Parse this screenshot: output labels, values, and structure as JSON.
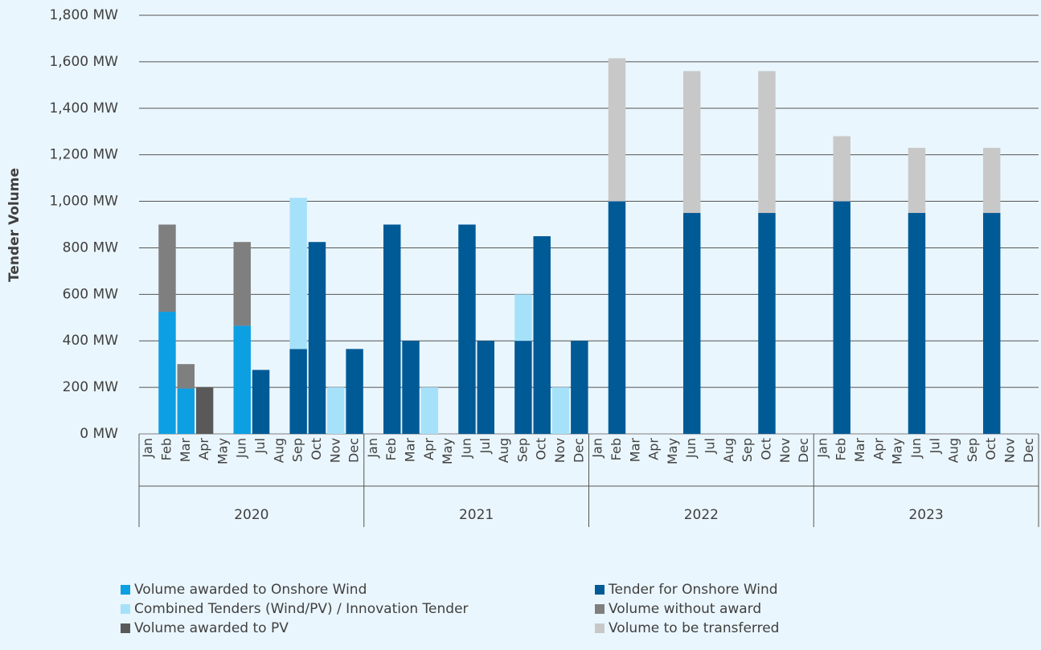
{
  "chart_data": {
    "type": "stacked_bar",
    "y_axis_title": "Tender Volume",
    "categories": [
      "Jan",
      "Feb",
      "Mar",
      "Apr",
      "May",
      "Jun",
      "Jul",
      "Aug",
      "Sep",
      "Oct",
      "Nov",
      "Dec",
      "Jan",
      "Feb",
      "Mar",
      "Apr",
      "May",
      "Jun",
      "Jul",
      "Aug",
      "Sep",
      "Oct",
      "Nov",
      "Dec",
      "Jan",
      "Feb",
      "Mar",
      "Apr",
      "May",
      "Jun",
      "Jul",
      "Aug",
      "Sep",
      "Oct",
      "Nov",
      "Dec",
      "Jan",
      "Feb",
      "Mar",
      "Apr",
      "May",
      "Jun",
      "Jul",
      "Aug",
      "Sep",
      "Oct",
      "Nov",
      "Dec"
    ],
    "groups": [
      "2020",
      "2021",
      "2022",
      "2023"
    ],
    "series": [
      {
        "name": "Volume awarded to Onshore Wind",
        "color": "#0c9fe2",
        "values": [
          null,
          525,
          195,
          null,
          null,
          465,
          null,
          null,
          null,
          null,
          null,
          null,
          null,
          null,
          null,
          null,
          null,
          null,
          null,
          null,
          null,
          null,
          null,
          null,
          null,
          null,
          null,
          null,
          null,
          null,
          null,
          null,
          null,
          null,
          null,
          null,
          null,
          null,
          null,
          null,
          null,
          null,
          null,
          null,
          null,
          null,
          null,
          null
        ]
      },
      {
        "name": "Tender for Onshore Wind",
        "color": "#005a96",
        "values": [
          null,
          null,
          null,
          null,
          null,
          null,
          275,
          null,
          365,
          825,
          null,
          365,
          null,
          900,
          400,
          null,
          null,
          900,
          400,
          null,
          400,
          850,
          null,
          400,
          null,
          1000,
          null,
          null,
          null,
          950,
          null,
          null,
          null,
          950,
          null,
          null,
          null,
          1000,
          null,
          null,
          null,
          950,
          null,
          null,
          null,
          950,
          null,
          null
        ]
      },
      {
        "name": "Combined Tenders (Wind/PV) / Innovation Tender",
        "color": "#a6e1fa",
        "values": [
          null,
          null,
          null,
          null,
          null,
          null,
          null,
          null,
          650,
          null,
          200,
          null,
          null,
          null,
          null,
          200,
          null,
          null,
          null,
          null,
          200,
          null,
          200,
          null,
          null,
          null,
          null,
          null,
          null,
          null,
          null,
          null,
          null,
          null,
          null,
          null,
          null,
          null,
          null,
          null,
          null,
          null,
          null,
          null,
          null,
          null,
          null,
          null
        ]
      },
      {
        "name": "Volume without award",
        "color": "#7f7f7f",
        "values": [
          null,
          375,
          105,
          null,
          null,
          360,
          null,
          null,
          null,
          null,
          null,
          null,
          null,
          null,
          null,
          null,
          null,
          null,
          null,
          null,
          null,
          null,
          null,
          null,
          null,
          null,
          null,
          null,
          null,
          null,
          null,
          null,
          null,
          null,
          null,
          null,
          null,
          null,
          null,
          null,
          null,
          null,
          null,
          null,
          null,
          null,
          null,
          null
        ]
      },
      {
        "name": "Volume awarded to PV",
        "color": "#595959",
        "values": [
          null,
          null,
          null,
          200,
          null,
          null,
          null,
          null,
          null,
          null,
          null,
          null,
          null,
          null,
          null,
          null,
          null,
          null,
          null,
          null,
          null,
          null,
          null,
          null,
          null,
          null,
          null,
          null,
          null,
          null,
          null,
          null,
          null,
          null,
          null,
          null,
          null,
          null,
          null,
          null,
          null,
          null,
          null,
          null,
          null,
          null,
          null,
          null
        ]
      },
      {
        "name": "Volume to be transferred",
        "color": "#c8c8c8",
        "values": [
          null,
          null,
          null,
          null,
          null,
          null,
          null,
          null,
          null,
          null,
          null,
          null,
          null,
          null,
          null,
          null,
          null,
          null,
          null,
          null,
          null,
          null,
          null,
          null,
          null,
          615,
          null,
          null,
          null,
          610,
          null,
          null,
          null,
          610,
          null,
          null,
          null,
          280,
          null,
          null,
          null,
          280,
          null,
          null,
          null,
          280,
          null,
          null
        ]
      }
    ],
    "ylim": [
      0,
      1800
    ],
    "yticks": [
      {
        "value": 0,
        "label": "0 MW"
      },
      {
        "value": 200,
        "label": "200 MW"
      },
      {
        "value": 400,
        "label": "400 MW"
      },
      {
        "value": 600,
        "label": "600 MW"
      },
      {
        "value": 800,
        "label": "800 MW"
      },
      {
        "value": 1000,
        "label": "1,000 MW"
      },
      {
        "value": 1200,
        "label": "1,200 MW"
      },
      {
        "value": 1400,
        "label": "1,400 MW"
      },
      {
        "value": 1600,
        "label": "1,600 MW"
      },
      {
        "value": 1800,
        "label": "1,800 MW"
      }
    ],
    "grid": true
  }
}
